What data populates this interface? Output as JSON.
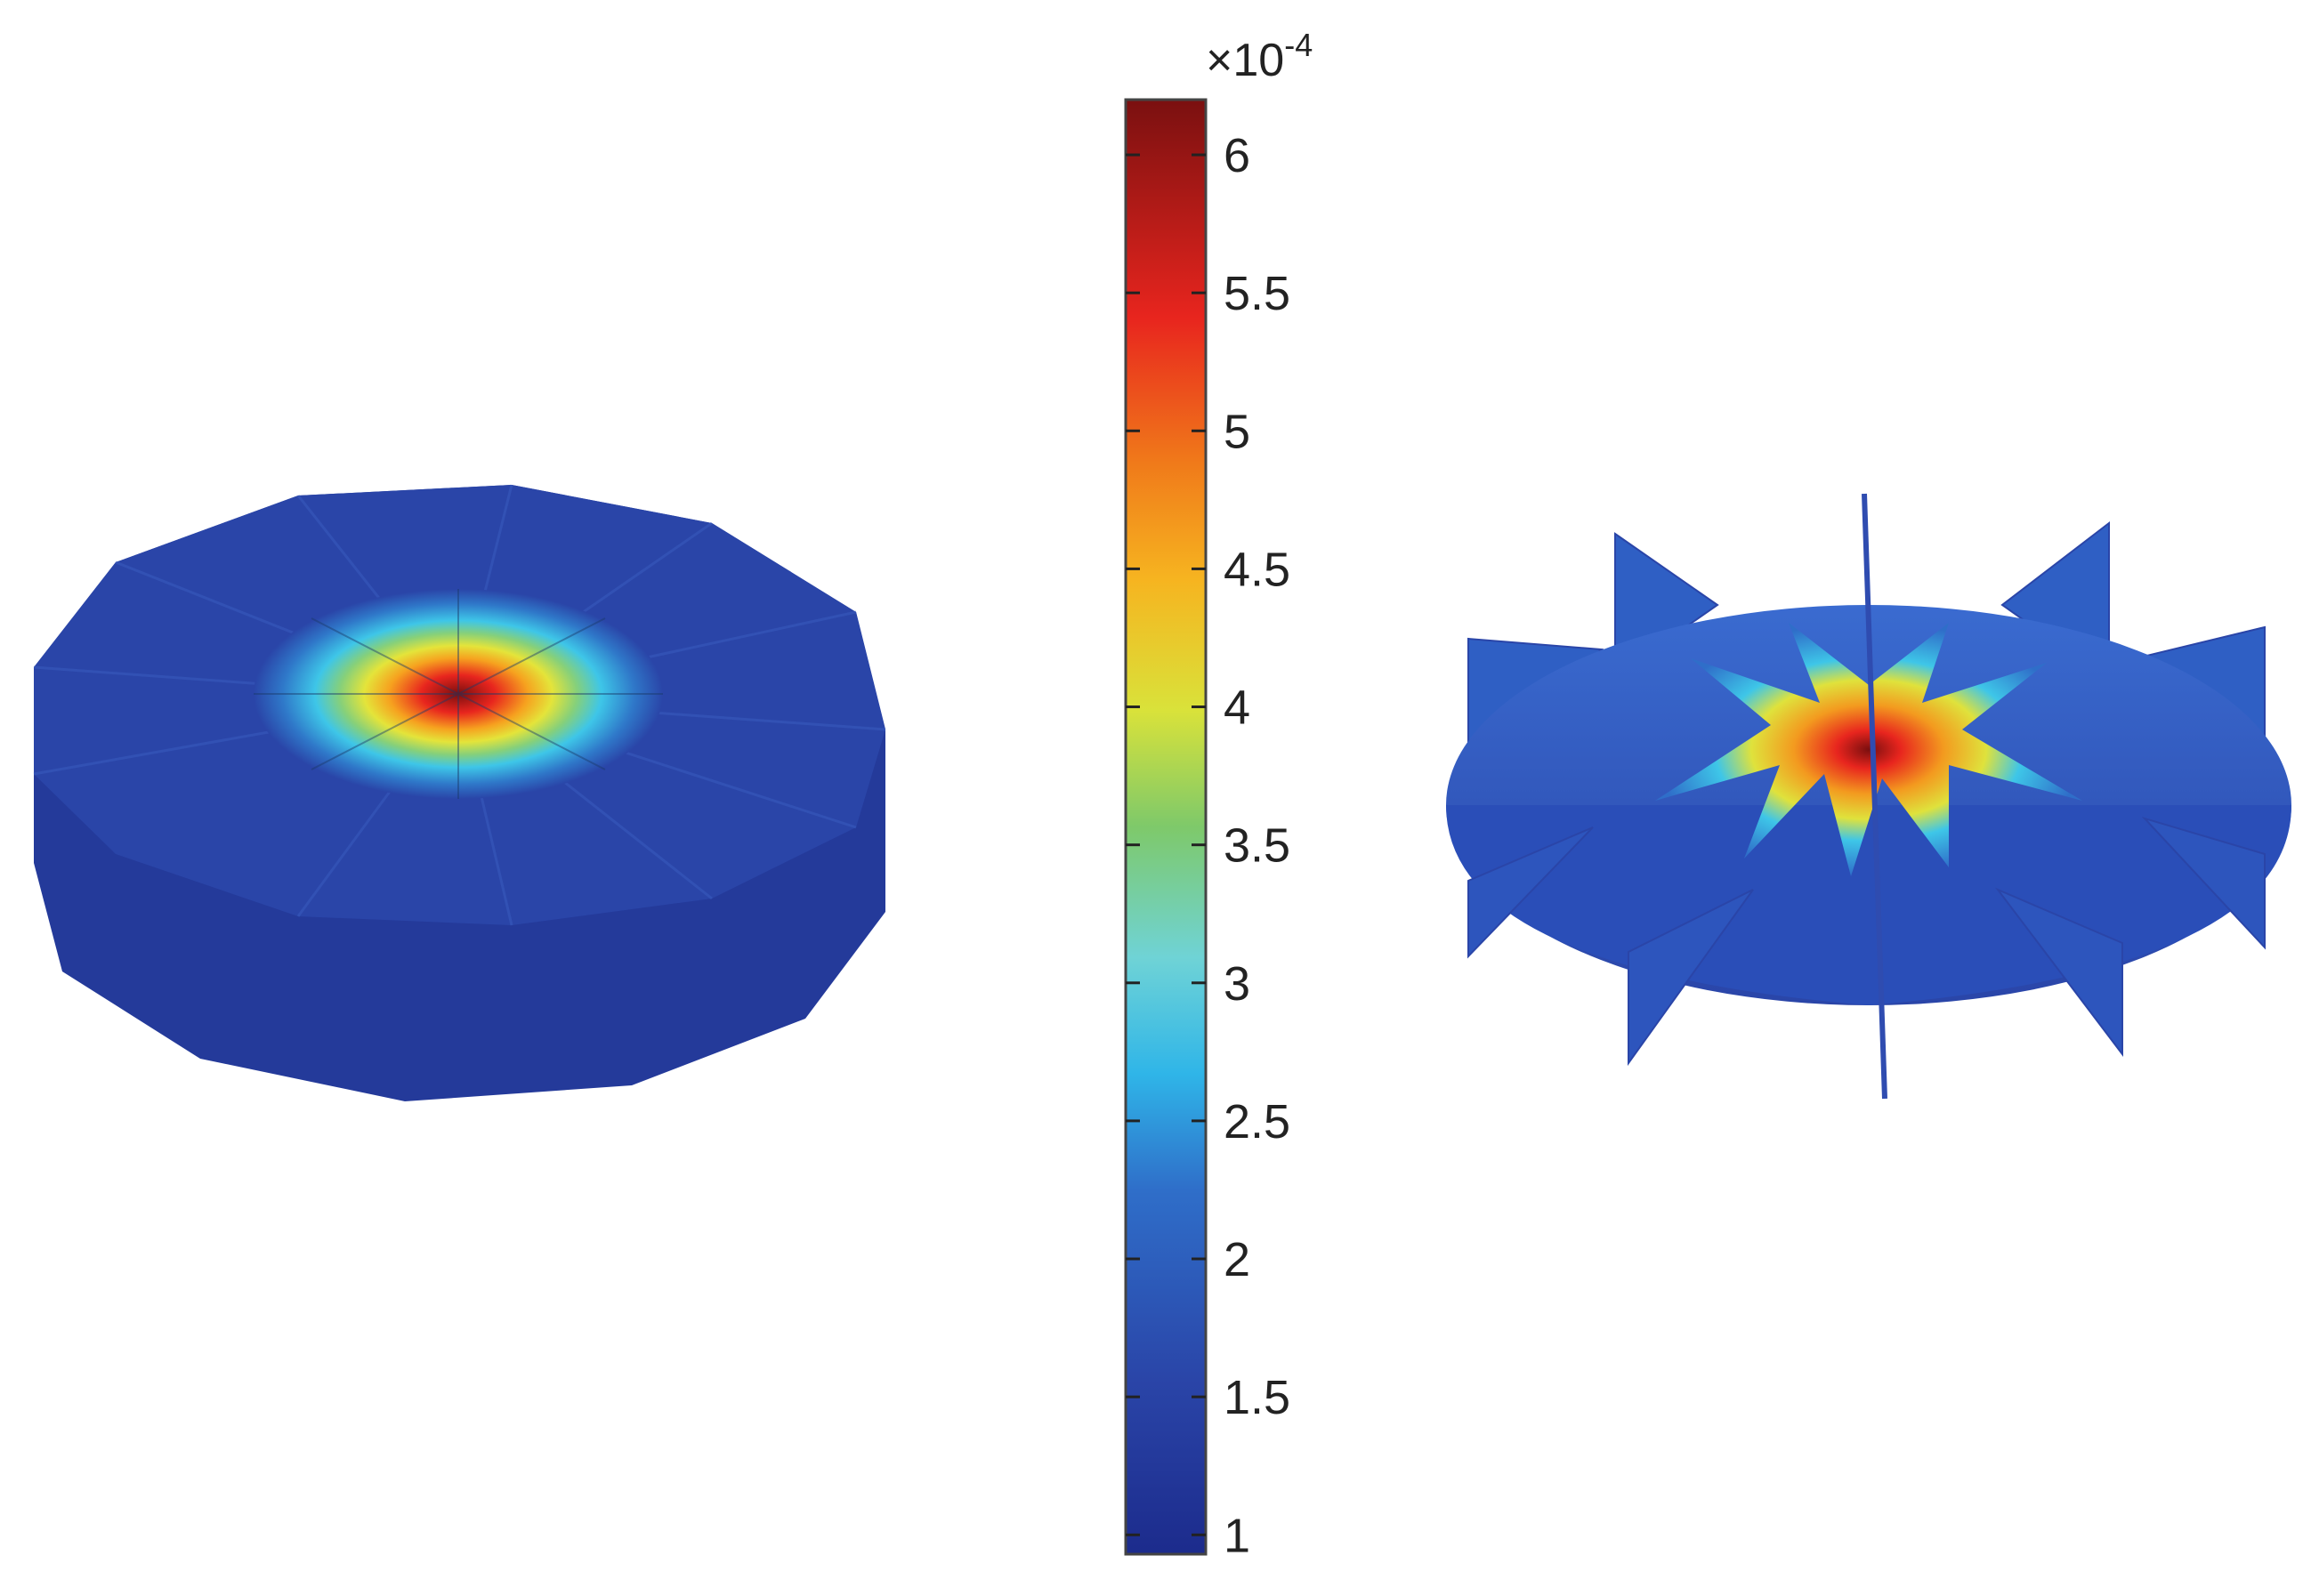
{
  "colorbar": {
    "multiplier": "×10",
    "exponent": "-4",
    "range": [
      0.93,
      6.2
    ],
    "ticks": [
      {
        "value": 1,
        "label": "1"
      },
      {
        "value": 1.5,
        "label": "1.5"
      },
      {
        "value": 2,
        "label": "2"
      },
      {
        "value": 2.5,
        "label": "2.5"
      },
      {
        "value": 3,
        "label": "3"
      },
      {
        "value": 3.5,
        "label": "3.5"
      },
      {
        "value": 4,
        "label": "4"
      },
      {
        "value": 4.5,
        "label": "4.5"
      },
      {
        "value": 5,
        "label": "5"
      },
      {
        "value": 5.5,
        "label": "5.5"
      },
      {
        "value": 6,
        "label": "6"
      }
    ],
    "colormap": "jet",
    "colors": [
      "#00008f",
      "#0000ff",
      "#00ffff",
      "#ffff00",
      "#ff0000",
      "#800000"
    ]
  },
  "left_plot": {
    "shape": "12-sided disk",
    "peak_value": 6.2,
    "base_value": 1.1
  },
  "right_plot": {
    "shape": "star-shaped deformed mesh",
    "peak_value": 6.2,
    "base_value": 1.3
  }
}
